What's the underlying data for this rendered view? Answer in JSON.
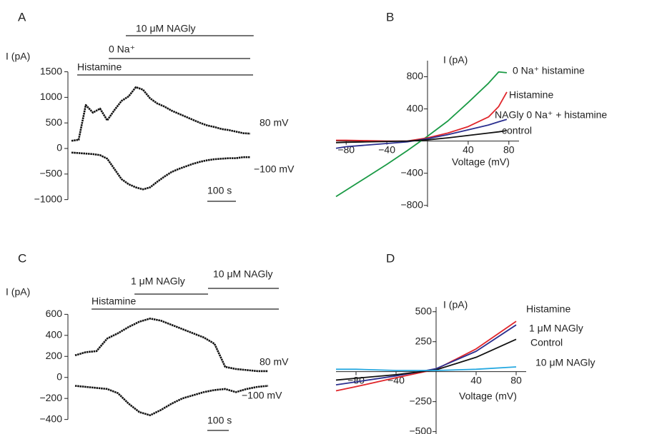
{
  "chart_data": [
    {
      "type": "trace",
      "label": "A",
      "ylabel": "I (pA)",
      "ylim": [
        -1100,
        1600
      ],
      "yticks": [
        {
          "value": -1000,
          "label": "−1000"
        },
        {
          "value": -500,
          "label": "−500"
        },
        0,
        500,
        1000,
        1500
      ],
      "x": [
        0,
        25,
        50,
        75,
        100,
        125,
        150,
        175,
        200,
        225,
        250,
        275,
        300,
        325,
        350,
        375,
        400,
        425,
        450,
        475,
        500,
        525,
        550,
        575,
        600,
        625
      ],
      "series": [
        {
          "name": "80 mV",
          "color": "#111111",
          "values": [
            150,
            170,
            850,
            700,
            780,
            550,
            750,
            930,
            1020,
            1200,
            1150,
            980,
            880,
            820,
            740,
            680,
            620,
            560,
            500,
            450,
            420,
            380,
            360,
            330,
            300,
            290
          ]
        },
        {
          "name": "−100 mV",
          "color": "#111111",
          "values": [
            -80,
            -90,
            -100,
            -110,
            -130,
            -200,
            -400,
            -600,
            -700,
            -760,
            -800,
            -760,
            -650,
            -550,
            -460,
            -400,
            -350,
            -300,
            -260,
            -230,
            -210,
            -200,
            -190,
            -190,
            -170,
            -170
          ]
        }
      ],
      "applications": [
        {
          "label": "Histamine",
          "start": 20,
          "end": 635
        },
        {
          "label": "0 Na⁺",
          "start": 130,
          "end": 625
        },
        {
          "label": "10 μM NAGly",
          "start": 190,
          "end": 637
        }
      ],
      "scale_bar": {
        "value": 100,
        "label": "100 s"
      }
    },
    {
      "type": "iv",
      "label": "B",
      "ylabel": "I (pA)",
      "xlabel": "Voltage (mV)",
      "xlim": [
        -90,
        90
      ],
      "ylim": [
        -820,
        1000
      ],
      "xticks": [
        {
          "value": -80,
          "label": "−80"
        },
        {
          "value": -40,
          "label": "−40"
        },
        40,
        80
      ],
      "yticks": [
        {
          "value": -800,
          "label": "−800"
        },
        {
          "value": -400,
          "label": "−400"
        },
        400,
        800
      ],
      "x": [
        -90,
        -80,
        -60,
        -40,
        -20,
        0,
        20,
        40,
        60,
        70,
        78
      ],
      "series": [
        {
          "name": "0 Na⁺  histamine",
          "color": "#1a9a45",
          "values": [
            -690,
            -610,
            -450,
            -290,
            -120,
            60,
            250,
            480,
            720,
            860,
            850
          ]
        },
        {
          "name": "Histamine",
          "color": "#e0262b",
          "values": [
            10,
            10,
            5,
            0,
            0,
            40,
            100,
            180,
            300,
            430,
            610
          ]
        },
        {
          "name": "NAGly 0 Na⁺ + histamine",
          "color": "#2b2f8f",
          "values": [
            -90,
            -70,
            -50,
            -30,
            -10,
            30,
            80,
            140,
            200,
            240,
            270
          ]
        },
        {
          "name": "control",
          "color": "#111111",
          "values": [
            -20,
            -15,
            -10,
            -5,
            0,
            15,
            40,
            70,
            100,
            115,
            130
          ]
        }
      ]
    },
    {
      "type": "trace",
      "label": "C",
      "ylabel": "I (pA)",
      "ylim": [
        -450,
        650
      ],
      "yticks": [
        {
          "value": -400,
          "label": "−400"
        },
        {
          "value": -200,
          "label": "−200"
        },
        0,
        200,
        400,
        600
      ],
      "x": [
        0,
        50,
        100,
        150,
        200,
        250,
        300,
        350,
        400,
        450,
        500,
        550,
        600,
        650,
        700,
        750,
        800,
        850,
        900
      ],
      "series": [
        {
          "name": "80 mV",
          "color": "#111111",
          "values": [
            210,
            240,
            250,
            370,
            420,
            480,
            530,
            560,
            540,
            500,
            460,
            420,
            380,
            320,
            100,
            80,
            70,
            60,
            60
          ]
        },
        {
          "name": "−100 mV",
          "color": "#111111",
          "values": [
            -80,
            -90,
            -100,
            -110,
            -150,
            -250,
            -330,
            -360,
            -310,
            -250,
            -200,
            -170,
            -140,
            -120,
            -110,
            -140,
            -110,
            -90,
            -80
          ]
        }
      ],
      "applications": [
        {
          "label": "Histamine",
          "start": 77,
          "end": 950
        },
        {
          "label": "1 μM NAGly",
          "start": 277,
          "end": 620
        },
        {
          "label": "10 μM NAGly",
          "start": 620,
          "end": 950
        }
      ],
      "scale_bar": {
        "value": 100,
        "label": "100 s"
      }
    },
    {
      "type": "iv",
      "label": "D",
      "ylabel": "I (pA)",
      "xlabel": "Voltage (mV)",
      "xlim": [
        -100,
        90
      ],
      "ylim": [
        -520,
        540
      ],
      "xticks": [
        {
          "value": -80,
          "label": "−80"
        },
        {
          "value": -40,
          "label": "−40"
        },
        40,
        80
      ],
      "yticks": [
        {
          "value": -500,
          "label": "−500"
        },
        {
          "value": -250,
          "label": "−250"
        },
        250,
        500
      ],
      "x": [
        -100,
        -80,
        -40,
        0,
        40,
        80
      ],
      "series": [
        {
          "name": "Histamine",
          "color": "#e0262b",
          "values": [
            -160,
            -125,
            -50,
            20,
            190,
            420
          ]
        },
        {
          "name": "1 μM NAGly",
          "color": "#2b2f8f",
          "values": [
            -110,
            -85,
            -35,
            25,
            170,
            390
          ]
        },
        {
          "name": "Control",
          "color": "#111111",
          "values": [
            -70,
            -55,
            -25,
            15,
            120,
            270
          ]
        },
        {
          "name": "10 μM NAGly",
          "color": "#27a9e1",
          "values": [
            20,
            20,
            10,
            10,
            20,
            40
          ]
        }
      ]
    }
  ]
}
